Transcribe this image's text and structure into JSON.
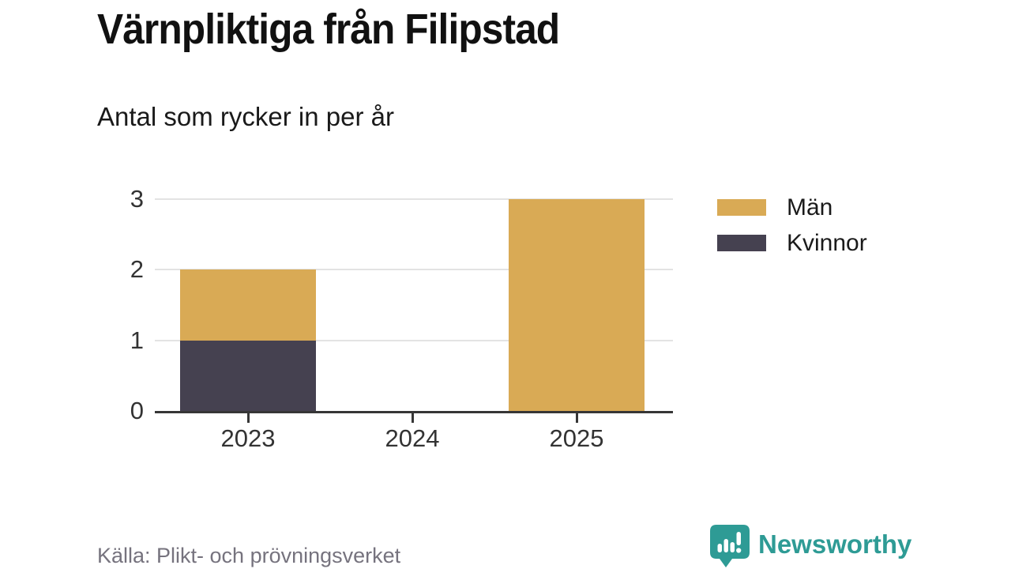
{
  "chart_data": {
    "type": "bar",
    "stacked": true,
    "title": "Värnpliktiga från Filipstad",
    "subtitle": "Antal som rycker in per år",
    "categories": [
      "2023",
      "2024",
      "2025"
    ],
    "series": [
      {
        "name": "Män",
        "color": "#D9AA55",
        "values": [
          1,
          0,
          3
        ]
      },
      {
        "name": "Kvinnor",
        "color": "#454150",
        "values": [
          1,
          0,
          0
        ]
      }
    ],
    "stack_order_bottom_to_top": [
      "Kvinnor",
      "Män"
    ],
    "ylim": [
      0,
      3
    ],
    "yticks": [
      0,
      1,
      2,
      3
    ],
    "grid": "horizontal",
    "legend_position": "right"
  },
  "footer": {
    "source": "Källa: Plikt- och prövningsverket",
    "brand": {
      "name": "Newsworthy",
      "color": "#2E9B95"
    }
  },
  "colors": {
    "background": "#ffffff",
    "title_text": "#111111",
    "axis_line": "#363636",
    "axis_label": "#333333",
    "gridline": "#e3e3e3",
    "source_text": "#76737e",
    "brand_teal": "#2E9B95"
  }
}
